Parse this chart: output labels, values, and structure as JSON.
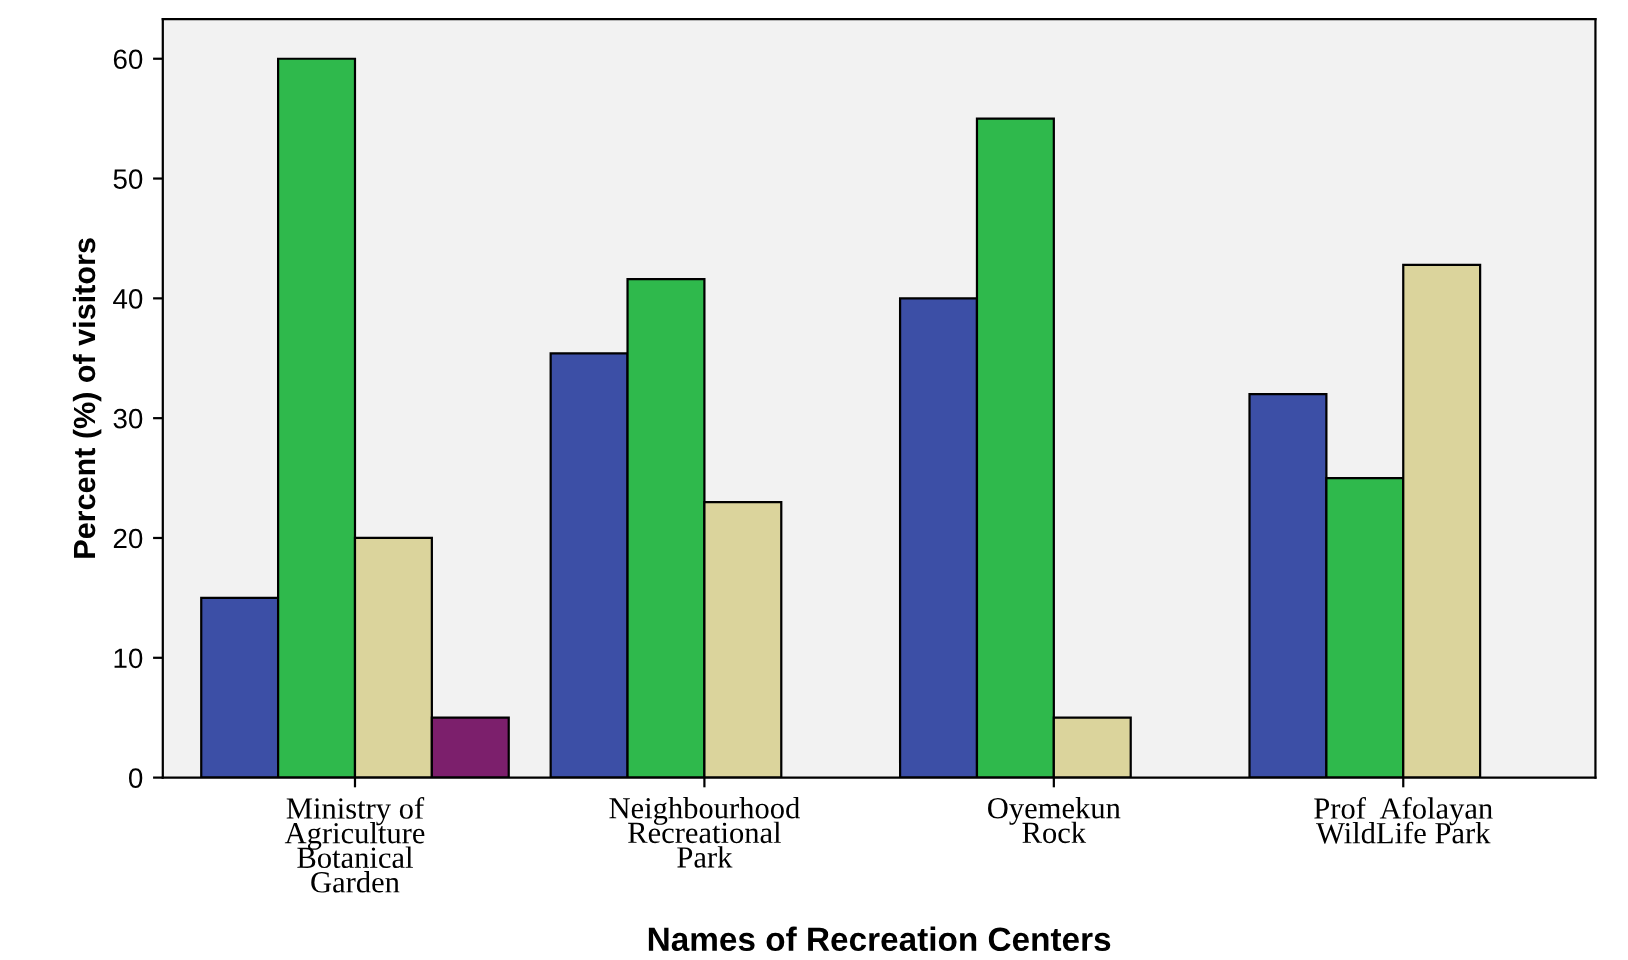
{
  "chart_data": {
    "type": "bar",
    "xlabel": "Names of Recreation Centers",
    "ylabel": "Percent (%) of visitors",
    "categories": [
      "Ministry of\nAgriculture\nBotanical\nGarden",
      "Neighbourhood\nRecreational\nPark",
      "Oyemekun\nRock",
      "Prof  Afolayan\nWildLife Park"
    ],
    "series": [
      {
        "color": "#3c4fa6",
        "values": [
          15,
          35.4,
          40,
          32
        ]
      },
      {
        "color": "#2fb94c",
        "values": [
          60,
          41.6,
          55,
          25
        ]
      },
      {
        "color": "#dbd49c",
        "values": [
          20,
          23,
          5,
          42.8
        ]
      },
      {
        "color": "#7c1f6c",
        "values": [
          5,
          null,
          null,
          null
        ]
      }
    ],
    "ylim": [
      0,
      63.3
    ],
    "yticks": [
      0,
      10,
      20,
      30,
      40,
      50,
      60
    ],
    "grid": false,
    "legend": false
  }
}
